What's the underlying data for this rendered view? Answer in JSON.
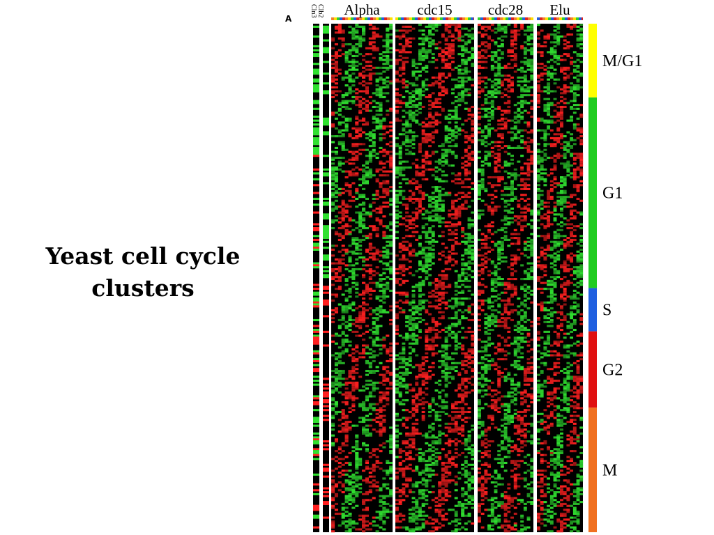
{
  "slide": {
    "title_line1": "Yeast cell cycle",
    "title_line2": "clusters"
  },
  "figure": {
    "panel_letter": "A"
  },
  "chart_data": {
    "type": "heatmap",
    "title": "",
    "xlabel": "",
    "ylabel": "",
    "colors": {
      "up": "#ff2020",
      "down": "#30e030",
      "neutral": "#000000"
    },
    "reference_columns": [
      "Clb2",
      "Cln3"
    ],
    "experiments": [
      {
        "name": "Alpha",
        "timepoints": 18
      },
      {
        "name": "cdc15",
        "timepoints": 24
      },
      {
        "name": "cdc28",
        "timepoints": 17
      },
      {
        "name": "Elu",
        "timepoints": 14
      }
    ],
    "phase_colors_top": [
      "#f08030",
      "#ffe000",
      "#30d030",
      "#2060e0",
      "#e02020"
    ],
    "phases": [
      {
        "name": "M/G1",
        "color": "#ffff00",
        "fraction": 0.145
      },
      {
        "name": "G1",
        "color": "#20cc20",
        "fraction": 0.375
      },
      {
        "name": "S",
        "color": "#1f5fe0",
        "fraction": 0.085
      },
      {
        "name": "G2",
        "color": "#e01010",
        "fraction": 0.15
      },
      {
        "name": "M",
        "color": "#f07020",
        "fraction": 0.245
      }
    ]
  }
}
